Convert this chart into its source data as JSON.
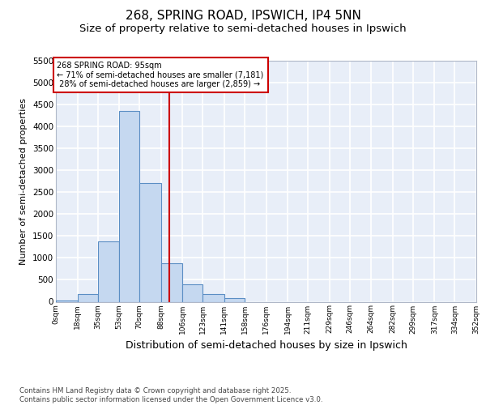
{
  "title1": "268, SPRING ROAD, IPSWICH, IP4 5NN",
  "title2": "Size of property relative to semi-detached houses in Ipswich",
  "xlabel": "Distribution of semi-detached houses by size in Ipswich",
  "ylabel": "Number of semi-detached properties",
  "property_label": "268 SPRING ROAD: 95sqm",
  "pct_smaller": 71,
  "pct_larger": 28,
  "count_smaller": 7181,
  "count_larger": 2859,
  "bin_edges": [
    0,
    18,
    35,
    53,
    70,
    88,
    106,
    123,
    141,
    158,
    176,
    194,
    211,
    229,
    246,
    264,
    282,
    299,
    317,
    334,
    352
  ],
  "bin_labels": [
    "0sqm",
    "18sqm",
    "35sqm",
    "53sqm",
    "70sqm",
    "88sqm",
    "106sqm",
    "123sqm",
    "141sqm",
    "158sqm",
    "176sqm",
    "194sqm",
    "211sqm",
    "229sqm",
    "246sqm",
    "264sqm",
    "282sqm",
    "299sqm",
    "317sqm",
    "334sqm",
    "352sqm"
  ],
  "bar_heights": [
    30,
    170,
    1380,
    4350,
    2700,
    870,
    400,
    170,
    90,
    0,
    0,
    0,
    0,
    0,
    0,
    0,
    0,
    0,
    0,
    0
  ],
  "bar_color": "#c5d8f0",
  "bar_edge_color": "#5b8ec4",
  "vline_color": "#cc0000",
  "vline_x": 95,
  "ylim": [
    0,
    5500
  ],
  "yticks": [
    0,
    500,
    1000,
    1500,
    2000,
    2500,
    3000,
    3500,
    4000,
    4500,
    5000,
    5500
  ],
  "annotation_box_edge_color": "#cc0000",
  "fig_bg_color": "#ffffff",
  "axes_bg_color": "#e8eef8",
  "grid_color": "#ffffff",
  "footnote": "Contains HM Land Registry data © Crown copyright and database right 2025.\nContains public sector information licensed under the Open Government Licence v3.0.",
  "title1_fontsize": 11,
  "title2_fontsize": 9.5,
  "xlabel_fontsize": 9,
  "ylabel_fontsize": 8
}
